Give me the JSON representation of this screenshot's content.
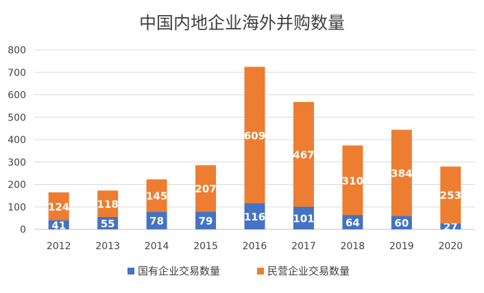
{
  "chart_data": {
    "type": "bar",
    "stacked": true,
    "title": "中国内地企业海外并购数量",
    "categories": [
      "2012",
      "2013",
      "2014",
      "2015",
      "2016",
      "2017",
      "2018",
      "2019",
      "2020"
    ],
    "series": [
      {
        "name": "国有企业交易数量",
        "color": "#4472C4",
        "values": [
          41,
          55,
          78,
          79,
          116,
          101,
          64,
          60,
          27
        ]
      },
      {
        "name": "民营企业交易数量",
        "color": "#ED7D31",
        "values": [
          124,
          118,
          145,
          207,
          609,
          467,
          310,
          384,
          253
        ]
      }
    ],
    "ylim": [
      0,
      800
    ],
    "yticks": [
      "0",
      "100",
      "200",
      "300",
      "400",
      "500",
      "600",
      "700",
      "800"
    ],
    "grid": true,
    "legend_position": "bottom"
  }
}
